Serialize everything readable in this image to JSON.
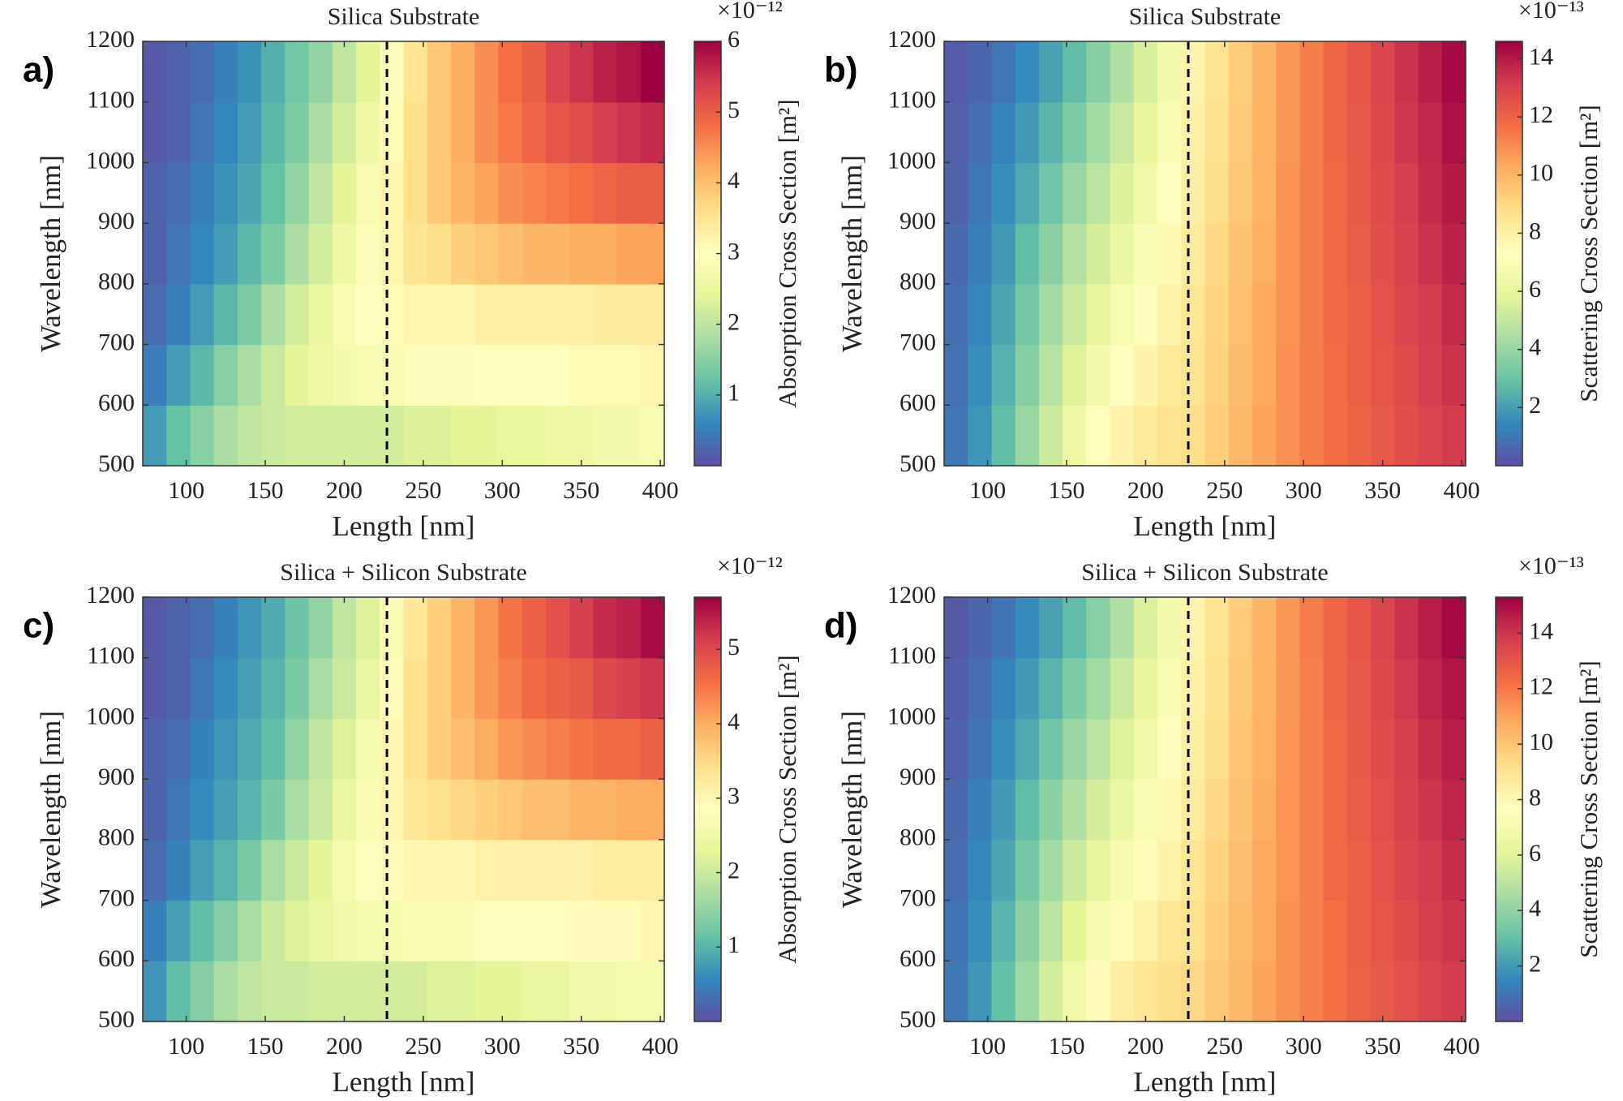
{
  "chart_data": [
    {
      "type": "heatmap",
      "panel_label": "a)",
      "title": "Silica Substrate",
      "xlabel": "Length [nm]",
      "ylabel": "Wavelength [nm]",
      "colorbar_label": "Absorption Cross Section  [m²]",
      "colorbar_exponent": "×10⁻¹²",
      "x": [
        80,
        95,
        110,
        125,
        140,
        155,
        170,
        185,
        200,
        215,
        230,
        245,
        260,
        275,
        290,
        305,
        320,
        335,
        350,
        365,
        380,
        395
      ],
      "y": [
        550,
        650,
        750,
        850,
        950,
        1050,
        1150
      ],
      "z": [
        [
          0.8,
          1.2,
          1.5,
          1.8,
          2.0,
          2.1,
          2.2,
          2.2,
          2.2,
          2.2,
          2.2,
          2.3,
          2.3,
          2.4,
          2.4,
          2.5,
          2.5,
          2.6,
          2.6,
          2.7,
          2.7,
          2.8
        ],
        [
          0.5,
          0.8,
          1.1,
          1.5,
          1.8,
          2.1,
          2.4,
          2.6,
          2.7,
          2.8,
          2.8,
          2.9,
          2.9,
          2.9,
          3.0,
          3.0,
          3.0,
          3.0,
          3.1,
          3.1,
          3.1,
          3.2
        ],
        [
          0.3,
          0.5,
          0.8,
          1.1,
          1.4,
          1.8,
          2.2,
          2.5,
          2.8,
          3.0,
          3.1,
          3.2,
          3.2,
          3.2,
          3.3,
          3.3,
          3.3,
          3.3,
          3.3,
          3.4,
          3.4,
          3.4
        ],
        [
          0.2,
          0.4,
          0.6,
          0.8,
          1.1,
          1.4,
          1.8,
          2.2,
          2.6,
          2.9,
          3.2,
          3.5,
          3.6,
          3.8,
          3.9,
          4.0,
          4.1,
          4.1,
          4.2,
          4.2,
          4.3,
          4.3
        ],
        [
          0.2,
          0.3,
          0.5,
          0.7,
          0.9,
          1.2,
          1.6,
          2.0,
          2.4,
          2.8,
          3.2,
          3.6,
          3.9,
          4.1,
          4.3,
          4.5,
          4.6,
          4.7,
          4.8,
          4.9,
          5.0,
          5.0
        ],
        [
          0.1,
          0.2,
          0.4,
          0.6,
          0.8,
          1.1,
          1.4,
          1.8,
          2.2,
          2.6,
          3.1,
          3.6,
          3.9,
          4.2,
          4.5,
          4.7,
          4.9,
          5.1,
          5.2,
          5.4,
          5.5,
          5.6
        ],
        [
          0.1,
          0.2,
          0.3,
          0.5,
          0.7,
          1.0,
          1.3,
          1.6,
          2.0,
          2.4,
          2.9,
          3.5,
          3.9,
          4.2,
          4.5,
          4.8,
          5.0,
          5.3,
          5.5,
          5.7,
          5.8,
          6.0
        ]
      ],
      "xlim": [
        72.5,
        402.5
      ],
      "ylim": [
        500,
        1200
      ],
      "xticks": [
        100,
        150,
        200,
        250,
        300,
        350,
        400
      ],
      "yticks": [
        500,
        600,
        700,
        800,
        900,
        1000,
        1100,
        1200
      ],
      "clim": [
        0,
        6
      ],
      "cticks": [
        1,
        2,
        3,
        4,
        5,
        6
      ],
      "vline": 227,
      "colormap": [
        "#5e4fa2",
        "#3288bd",
        "#66c2a5",
        "#abdda4",
        "#e6f598",
        "#ffffbf",
        "#fee08b",
        "#fdae61",
        "#f46d43",
        "#d53e4f",
        "#9e0142"
      ]
    },
    {
      "type": "heatmap",
      "panel_label": "b)",
      "title": "Silica Substrate",
      "xlabel": "Length [nm]",
      "ylabel": "Wavelength [nm]",
      "colorbar_label": "Scattering Cross Section  [m²]",
      "colorbar_exponent": "×10⁻¹³",
      "x": [
        80,
        95,
        110,
        125,
        140,
        155,
        170,
        185,
        200,
        215,
        230,
        245,
        260,
        275,
        290,
        305,
        320,
        335,
        350,
        365,
        380,
        395
      ],
      "y": [
        550,
        650,
        750,
        850,
        950,
        1050,
        1150
      ],
      "z": [
        [
          1.0,
          1.8,
          2.8,
          4.0,
          5.2,
          6.3,
          7.2,
          7.9,
          8.3,
          8.6,
          8.8,
          9.3,
          9.9,
          10.4,
          10.9,
          11.3,
          11.7,
          12.0,
          12.3,
          12.6,
          12.9,
          13.2
        ],
        [
          0.9,
          1.6,
          2.5,
          3.6,
          4.7,
          5.7,
          6.6,
          7.3,
          7.8,
          8.3,
          8.6,
          9.2,
          9.8,
          10.3,
          10.9,
          11.3,
          11.7,
          12.1,
          12.4,
          12.7,
          13.1,
          13.4
        ],
        [
          0.8,
          1.4,
          2.2,
          3.2,
          4.2,
          5.1,
          6.0,
          6.8,
          7.4,
          7.9,
          8.5,
          9.1,
          9.7,
          10.3,
          10.8,
          11.3,
          11.8,
          12.1,
          12.5,
          12.9,
          13.2,
          13.6
        ],
        [
          0.7,
          1.2,
          1.9,
          2.8,
          3.7,
          4.6,
          5.4,
          6.2,
          6.9,
          7.6,
          8.3,
          9.0,
          9.6,
          10.2,
          10.8,
          11.3,
          11.8,
          12.2,
          12.6,
          13.0,
          13.4,
          13.8
        ],
        [
          0.5,
          1.0,
          1.6,
          2.3,
          3.1,
          4.0,
          4.8,
          5.6,
          6.4,
          7.3,
          8.1,
          8.8,
          9.5,
          10.1,
          10.8,
          11.3,
          11.8,
          12.3,
          12.7,
          13.1,
          13.6,
          14.0
        ],
        [
          0.4,
          0.8,
          1.3,
          1.9,
          2.6,
          3.4,
          4.2,
          5.1,
          6.0,
          6.9,
          8.0,
          8.7,
          9.4,
          10.1,
          10.7,
          11.3,
          11.9,
          12.3,
          12.8,
          13.3,
          13.7,
          14.2
        ],
        [
          0.3,
          0.6,
          1.0,
          1.5,
          2.1,
          2.8,
          3.6,
          4.5,
          5.5,
          6.6,
          7.8,
          8.6,
          9.3,
          10.0,
          10.7,
          11.3,
          11.9,
          12.4,
          12.9,
          13.4,
          13.9,
          14.4
        ]
      ],
      "xlim": [
        72.5,
        402.5
      ],
      "ylim": [
        500,
        1200
      ],
      "xticks": [
        100,
        150,
        200,
        250,
        300,
        350,
        400
      ],
      "yticks": [
        500,
        600,
        700,
        800,
        900,
        1000,
        1100,
        1200
      ],
      "clim": [
        0,
        14.6
      ],
      "cticks": [
        2,
        4,
        6,
        8,
        10,
        12,
        14
      ],
      "vline": 227,
      "colormap": [
        "#5e4fa2",
        "#3288bd",
        "#66c2a5",
        "#abdda4",
        "#e6f598",
        "#ffffbf",
        "#fee08b",
        "#fdae61",
        "#f46d43",
        "#d53e4f",
        "#9e0142"
      ]
    },
    {
      "type": "heatmap",
      "panel_label": "c)",
      "title": "Silica + Silicon Substrate",
      "xlabel": "Length [nm]",
      "ylabel": "Wavelength [nm]",
      "colorbar_label": "Absorption Cross Section  [m²]",
      "colorbar_exponent": "×10⁻¹²",
      "x": [
        80,
        95,
        110,
        125,
        140,
        155,
        170,
        185,
        200,
        215,
        230,
        245,
        260,
        275,
        290,
        305,
        320,
        335,
        350,
        365,
        380,
        395
      ],
      "y": [
        550,
        650,
        750,
        850,
        950,
        1050,
        1150
      ],
      "z": [
        [
          0.7,
          1.1,
          1.4,
          1.7,
          1.9,
          2.0,
          2.0,
          2.1,
          2.1,
          2.1,
          2.1,
          2.1,
          2.2,
          2.2,
          2.3,
          2.3,
          2.4,
          2.4,
          2.5,
          2.5,
          2.6,
          2.6
        ],
        [
          0.5,
          0.8,
          1.1,
          1.4,
          1.7,
          2.0,
          2.2,
          2.4,
          2.5,
          2.6,
          2.6,
          2.7,
          2.7,
          2.7,
          2.8,
          2.8,
          2.8,
          2.8,
          2.9,
          2.9,
          2.9,
          3.0
        ],
        [
          0.3,
          0.5,
          0.8,
          1.0,
          1.3,
          1.7,
          2.0,
          2.3,
          2.6,
          2.8,
          2.9,
          3.0,
          3.0,
          3.0,
          3.1,
          3.1,
          3.1,
          3.1,
          3.1,
          3.2,
          3.2,
          3.2
        ],
        [
          0.2,
          0.4,
          0.6,
          0.8,
          1.0,
          1.3,
          1.7,
          2.0,
          2.4,
          2.7,
          3.0,
          3.3,
          3.4,
          3.5,
          3.6,
          3.7,
          3.8,
          3.8,
          3.9,
          3.9,
          4.0,
          4.0
        ],
        [
          0.2,
          0.3,
          0.5,
          0.7,
          0.9,
          1.1,
          1.5,
          1.9,
          2.2,
          2.6,
          3.0,
          3.4,
          3.6,
          3.8,
          4.0,
          4.2,
          4.3,
          4.4,
          4.5,
          4.6,
          4.6,
          4.7
        ],
        [
          0.1,
          0.2,
          0.4,
          0.6,
          0.8,
          1.0,
          1.3,
          1.7,
          2.0,
          2.4,
          2.9,
          3.4,
          3.6,
          3.9,
          4.2,
          4.4,
          4.6,
          4.7,
          4.8,
          5.0,
          5.1,
          5.2
        ],
        [
          0.1,
          0.2,
          0.3,
          0.5,
          0.7,
          0.9,
          1.2,
          1.5,
          1.9,
          2.2,
          2.7,
          3.3,
          3.6,
          3.9,
          4.2,
          4.5,
          4.7,
          4.9,
          5.1,
          5.3,
          5.4,
          5.6
        ]
      ],
      "xlim": [
        72.5,
        402.5
      ],
      "ylim": [
        500,
        1200
      ],
      "xticks": [
        100,
        150,
        200,
        250,
        300,
        350,
        400
      ],
      "yticks": [
        500,
        600,
        700,
        800,
        900,
        1000,
        1100,
        1200
      ],
      "clim": [
        0,
        5.7
      ],
      "cticks": [
        1,
        2,
        3,
        4,
        5
      ],
      "vline": 227,
      "colormap": [
        "#5e4fa2",
        "#3288bd",
        "#66c2a5",
        "#abdda4",
        "#e6f598",
        "#ffffbf",
        "#fee08b",
        "#fdae61",
        "#f46d43",
        "#d53e4f",
        "#9e0142"
      ]
    },
    {
      "type": "heatmap",
      "panel_label": "d)",
      "title": "Silica + Silicon Substrate",
      "xlabel": "Length [nm]",
      "ylabel": "Wavelength [nm]",
      "colorbar_label": "Scattering Cross Section  [m²]",
      "colorbar_exponent": "×10⁻¹³",
      "x": [
        80,
        95,
        110,
        125,
        140,
        155,
        170,
        185,
        200,
        215,
        230,
        245,
        260,
        275,
        290,
        305,
        320,
        335,
        350,
        365,
        380,
        395
      ],
      "y": [
        550,
        650,
        750,
        850,
        950,
        1050,
        1150
      ],
      "z": [
        [
          1.1,
          1.9,
          3.0,
          4.3,
          5.6,
          6.8,
          7.8,
          8.5,
          8.9,
          9.2,
          9.4,
          9.9,
          10.4,
          10.9,
          11.4,
          11.8,
          12.2,
          12.6,
          12.9,
          13.2,
          13.5,
          13.8
        ],
        [
          1.0,
          1.7,
          2.7,
          3.9,
          5.0,
          6.1,
          7.1,
          7.8,
          8.3,
          8.8,
          9.1,
          9.7,
          10.3,
          10.8,
          11.4,
          11.8,
          12.2,
          12.7,
          13.0,
          13.3,
          13.7,
          14.0
        ],
        [
          0.8,
          1.5,
          2.3,
          3.4,
          4.4,
          5.4,
          6.3,
          7.1,
          7.8,
          8.3,
          8.9,
          9.6,
          10.2,
          10.8,
          11.3,
          11.8,
          12.4,
          12.7,
          13.1,
          13.5,
          13.8,
          14.2
        ],
        [
          0.7,
          1.3,
          2.0,
          2.9,
          3.9,
          4.8,
          5.7,
          6.5,
          7.2,
          8.0,
          8.7,
          9.4,
          10.1,
          10.7,
          11.3,
          11.8,
          12.4,
          12.8,
          13.2,
          13.6,
          14.0,
          14.4
        ],
        [
          0.5,
          1.0,
          1.7,
          2.4,
          3.3,
          4.2,
          5.0,
          5.9,
          6.7,
          7.7,
          8.5,
          9.2,
          10.0,
          10.6,
          11.3,
          11.8,
          12.4,
          12.9,
          13.3,
          13.7,
          14.2,
          14.6
        ],
        [
          0.4,
          0.8,
          1.4,
          2.0,
          2.7,
          3.6,
          4.4,
          5.4,
          6.3,
          7.2,
          8.4,
          9.1,
          9.9,
          10.6,
          11.2,
          11.8,
          12.5,
          12.9,
          13.4,
          13.9,
          14.4,
          14.8
        ],
        [
          0.3,
          0.6,
          1.0,
          1.6,
          2.2,
          2.9,
          3.8,
          4.7,
          5.8,
          6.9,
          8.2,
          9.0,
          9.8,
          10.5,
          11.2,
          11.9,
          12.5,
          13.0,
          13.5,
          14.1,
          14.6,
          15.1
        ]
      ],
      "xlim": [
        72.5,
        402.5
      ],
      "ylim": [
        500,
        1200
      ],
      "xticks": [
        100,
        150,
        200,
        250,
        300,
        350,
        400
      ],
      "yticks": [
        500,
        600,
        700,
        800,
        900,
        1000,
        1100,
        1200
      ],
      "clim": [
        0,
        15.3
      ],
      "cticks": [
        2,
        4,
        6,
        8,
        10,
        12,
        14
      ],
      "vline": 227,
      "colormap": [
        "#5e4fa2",
        "#3288bd",
        "#66c2a5",
        "#abdda4",
        "#e6f598",
        "#ffffbf",
        "#fee08b",
        "#fdae61",
        "#f46d43",
        "#d53e4f",
        "#9e0142"
      ]
    }
  ]
}
